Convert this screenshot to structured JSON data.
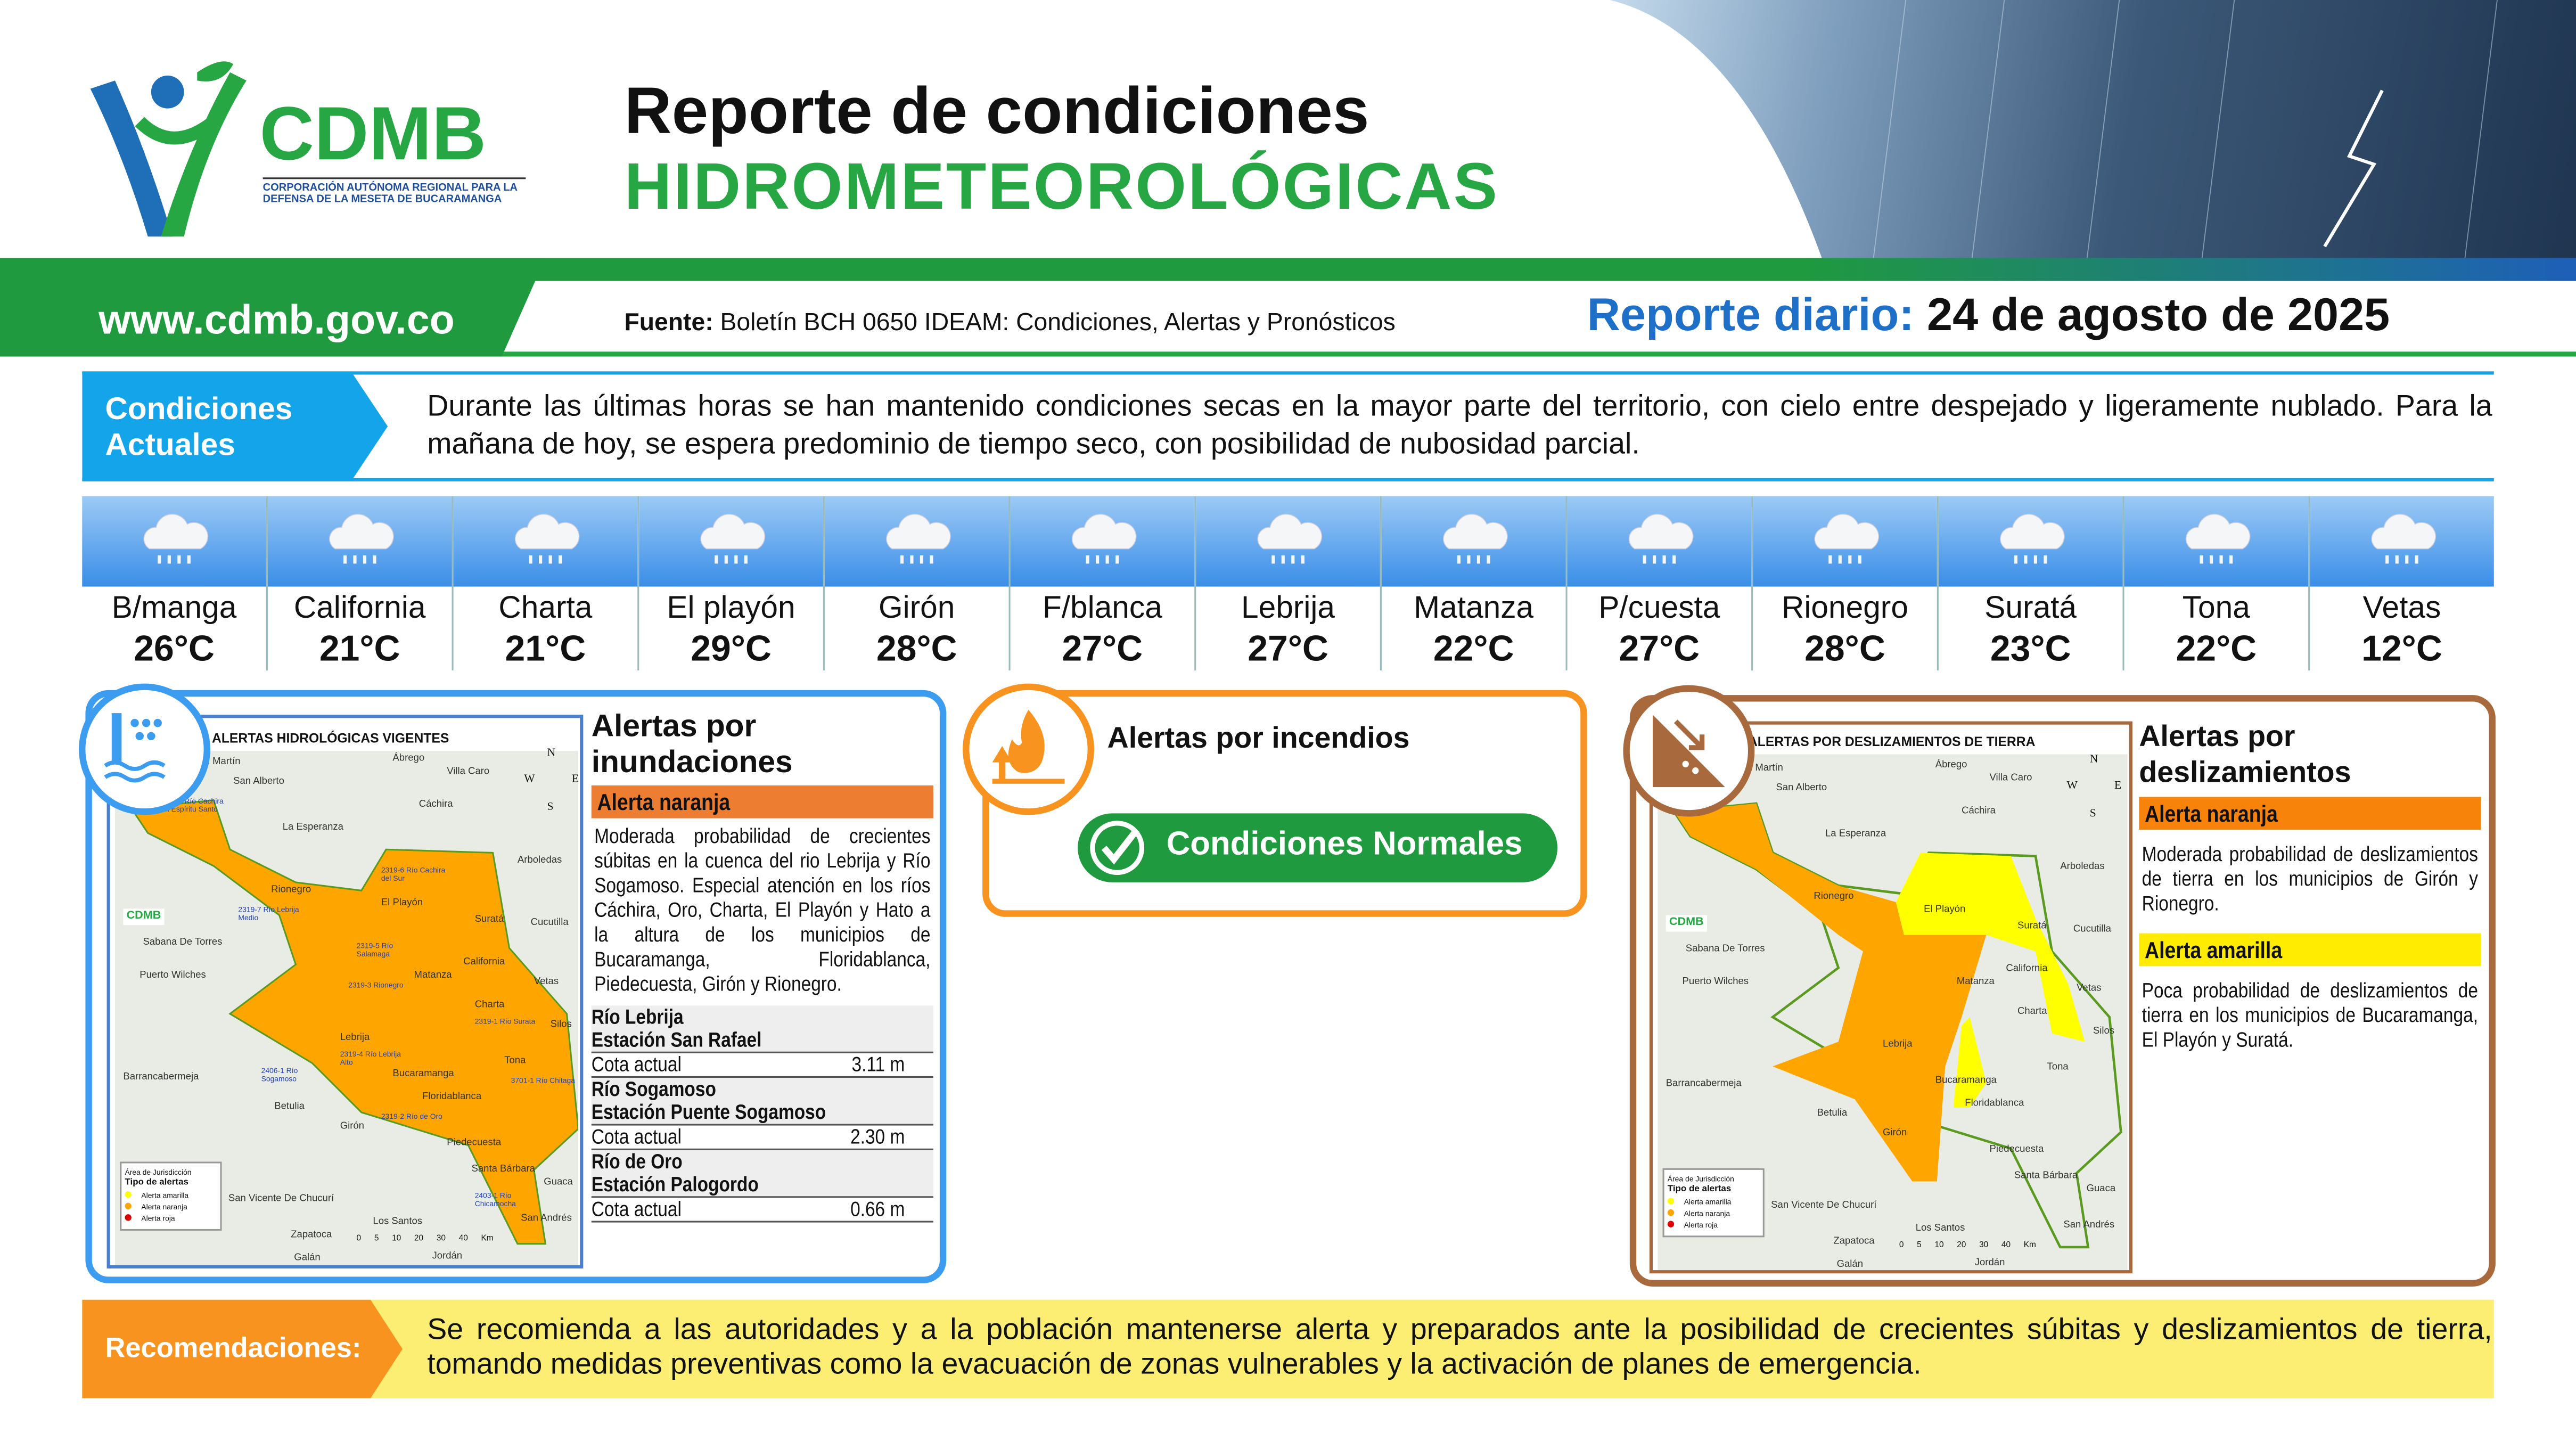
{
  "header": {
    "logo_text": "CDMB",
    "logo_subtitle": "CORPORACIÓN AUTÓNOMA REGIONAL PARA LA DEFENSA DE LA MESETA DE BUCARAMANGA",
    "title_line1": "Reporte de condiciones",
    "title_line2": "HIDROMETEOROLÓGICAS"
  },
  "subheader": {
    "url": "www.cdmb.gov.co",
    "source_label": "Fuente:",
    "source_text": " Boletín BCH 0650 IDEAM: Condiciones, Alertas y Pronósticos",
    "report_label": "Reporte diario:",
    "report_date": " 24 de agosto de 2025"
  },
  "conditions": {
    "label": "Condiciones Actuales",
    "text": "Durante las últimas horas se han mantenido condiciones secas en la mayor parte del territorio, con cielo entre despejado y ligeramente nublado. Para la mañana de hoy, se espera predominio de tiempo seco, con posibilidad de nubosidad parcial."
  },
  "weather": [
    {
      "name": "B/manga",
      "temp": "26°C",
      "icon": "rain-cloud-icon"
    },
    {
      "name": "California",
      "temp": "21°C",
      "icon": "rain-cloud-icon"
    },
    {
      "name": "Charta",
      "temp": "21°C",
      "icon": "rain-cloud-icon"
    },
    {
      "name": "El playón",
      "temp": "29°C",
      "icon": "rain-cloud-icon"
    },
    {
      "name": "Girón",
      "temp": "28°C",
      "icon": "rain-cloud-icon"
    },
    {
      "name": "F/blanca",
      "temp": "27°C",
      "icon": "rain-cloud-icon"
    },
    {
      "name": "Lebrija",
      "temp": "27°C",
      "icon": "rain-cloud-icon"
    },
    {
      "name": "Matanza",
      "temp": "22°C",
      "icon": "rain-cloud-icon"
    },
    {
      "name": "P/cuesta",
      "temp": "27°C",
      "icon": "rain-cloud-icon"
    },
    {
      "name": "Rionegro",
      "temp": "28°C",
      "icon": "rain-cloud-icon"
    },
    {
      "name": "Suratá",
      "temp": "23°C",
      "icon": "rain-cloud-icon"
    },
    {
      "name": "Tona",
      "temp": "22°C",
      "icon": "rain-cloud-icon"
    },
    {
      "name": "Vetas",
      "temp": "12°C",
      "icon": "rain-cloud-icon"
    }
  ],
  "flood": {
    "title": "Alertas por inundaciones",
    "map_title": "ALERTAS HIDROLÓGICAS VIGENTES",
    "alert": "Alerta naranja",
    "alert_color": "#ed7d31",
    "text": "Moderada probabilidad de crecientes súbitas en la cuenca del rio Lebrija y Río Sogamoso. Especial atención en los ríos Cáchira, Oro, Charta, El Playón y Hato a la altura de los municipios de Bucaramanga, Floridablanca, Piedecuesta, Girón y Rionegro.",
    "stations": [
      {
        "river": "Río Lebrija",
        "station": "Estación San Rafael",
        "label": "Cota actual",
        "value": "3.11 m"
      },
      {
        "river": "Río Sogamoso",
        "station": "Estación Puente Sogamoso",
        "label": "Cota actual",
        "value": "2.30 m"
      },
      {
        "river": "Río de Oro",
        "station": "Estación Palogordo",
        "label": "Cota actual",
        "value": "0.66 m"
      }
    ]
  },
  "fire": {
    "title": "Alertas por incendios",
    "status": "Condiciones Normales",
    "status_color": "#1f9a3f"
  },
  "landslide": {
    "title": "Alertas por deslizamientos",
    "map_title": "ALERTAS POR DESLIZAMIENTOS DE TIERRA",
    "alerts": [
      {
        "label": "Alerta naranja",
        "color": "#f7830a",
        "text": "Moderada probabilidad de deslizamientos de tierra en los municipios de Girón y Rionegro."
      },
      {
        "label": "Alerta amarilla",
        "color": "#ffec00",
        "text": "Poca probabilidad de deslizamientos de tierra en los municipios de Bucaramanga, El Playón y Suratá."
      }
    ]
  },
  "map_common": {
    "places": [
      "San Martín",
      "San Alberto",
      "Ábrego",
      "Villa Caro",
      "Cáchira",
      "La Esperanza",
      "Arboledas",
      "Rionegro",
      "El Playón",
      "Suratá",
      "Cucutilla",
      "Sabana De Torres",
      "Puerto Wilches",
      "Matanza",
      "California",
      "Vetas",
      "Charta",
      "Silos",
      "Lebrija",
      "Tona",
      "Bucaramanga",
      "Barrancabermeja",
      "Floridablanca",
      "Betulia",
      "Girón",
      "Piedecuesta",
      "Santa Bárbara",
      "Guaca",
      "San Vicente De Chucurí",
      "Zapatoca",
      "Los Santos",
      "San Andrés",
      "Galán",
      "Jordán"
    ],
    "legend_area": "Área de Jurisdicción",
    "legend_title": "Tipo de alertas",
    "legend_items": [
      {
        "label": "Alerta amarilla",
        "color": "#ffff00"
      },
      {
        "label": "Alerta naranja",
        "color": "#ffa500"
      },
      {
        "label": "Alerta roja",
        "color": "#e00000"
      }
    ],
    "scale_unit": "Km",
    "scale_ticks": [
      "0",
      "5",
      "10",
      "20",
      "30",
      "40"
    ],
    "compass": [
      "N",
      "S",
      "E",
      "W"
    ]
  },
  "flood_basins": [
    "2319-8 Río Cachira del Espíritu Santo",
    "2319-7 Río Lebrija Medio",
    "2319-6 Río Cachira del Sur",
    "2319-5 Río Salamaga",
    "2319-3 Rionegro",
    "2319-1 Río Surata",
    "2319-4 Río Lebrija Alto",
    "3701-1 Río Chitaga",
    "2406-1 Río Sogamoso",
    "2319-2 Río de Oro",
    "2403-1 Río Chicamocha"
  ],
  "recommendations": {
    "label": "Recomendaciones:",
    "text": "Se recomienda a las autoridades y a la población mantenerse alerta y preparados ante la posibilidad de crecientes súbitas y deslizamientos de tierra, tomando medidas preventivas como la evacuación de zonas vulnerables y la activación de planes de emergencia."
  }
}
